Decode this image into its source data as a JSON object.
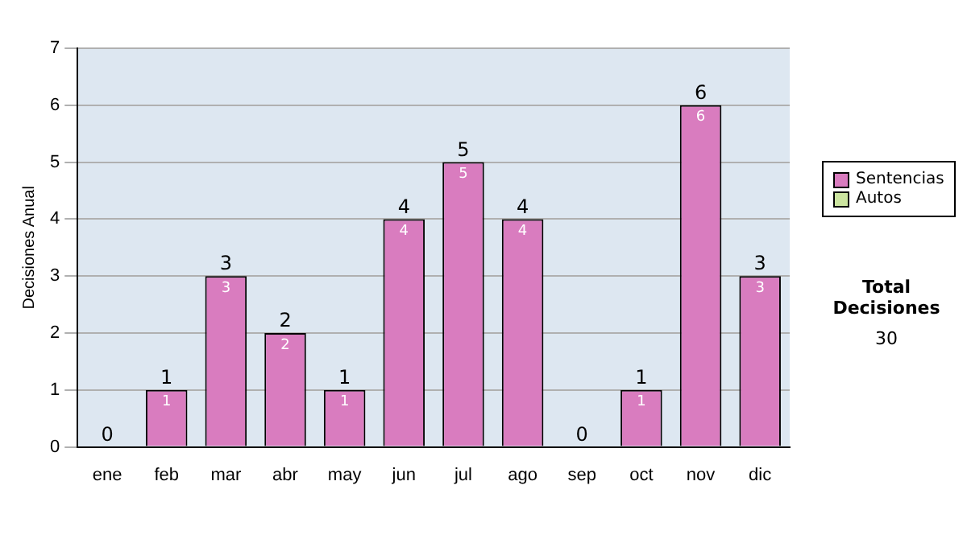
{
  "chart_data": {
    "type": "bar",
    "ylabel": "Decisiones Anual",
    "categories": [
      "ene",
      "feb",
      "mar",
      "abr",
      "may",
      "jun",
      "jul",
      "ago",
      "sep",
      "oct",
      "nov",
      "dic"
    ],
    "series": [
      {
        "name": "Sentencias",
        "color": "#d97cbf",
        "values": [
          0,
          1,
          3,
          2,
          1,
          4,
          5,
          4,
          0,
          1,
          6,
          3
        ],
        "value_labels": [
          null,
          "1",
          "3",
          "2",
          "1",
          "4",
          "5",
          "4",
          null,
          "1",
          "6",
          "3"
        ]
      },
      {
        "name": "Autos",
        "color": "#cce5a0",
        "values": [
          0,
          0,
          0,
          0,
          0,
          0,
          0,
          0,
          0,
          0,
          0,
          0
        ]
      }
    ],
    "stacked": true,
    "totals": [
      "0",
      "1",
      "3",
      "2",
      "1",
      "4",
      "5",
      "4",
      "0",
      "1",
      "6",
      "3"
    ],
    "ylim": [
      0,
      7
    ],
    "yticks": [
      0,
      1,
      2,
      3,
      4,
      5,
      6,
      7
    ],
    "grid": "y",
    "legend": "right",
    "annotations": [
      "Total Decisiones",
      "30"
    ]
  }
}
